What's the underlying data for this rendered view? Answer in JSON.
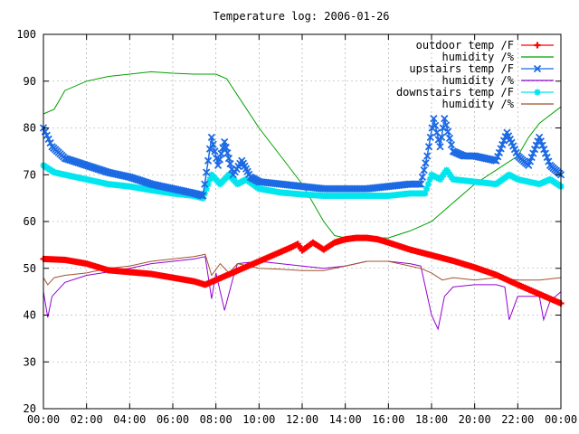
{
  "chart_data": {
    "type": "line",
    "title": "Temperature log: 2006-01-26",
    "xlabel": "",
    "ylabel": "",
    "x_ticks": [
      "00:00",
      "02:00",
      "04:00",
      "06:00",
      "08:00",
      "10:00",
      "12:00",
      "14:00",
      "16:00",
      "18:00",
      "20:00",
      "22:00",
      "00:00"
    ],
    "xlim": [
      0,
      24
    ],
    "ylim": [
      20,
      100
    ],
    "y_ticks": [
      20,
      30,
      40,
      50,
      60,
      70,
      80,
      90,
      100
    ],
    "grid": true,
    "legend_position": "top-right",
    "series": [
      {
        "name": "outdoor temp /F",
        "color": "#ff0000",
        "marker": "plus",
        "points": [
          [
            0,
            52
          ],
          [
            1,
            51.8
          ],
          [
            2,
            51
          ],
          [
            3,
            49.6
          ],
          [
            4,
            49.2
          ],
          [
            5,
            48.8
          ],
          [
            6,
            48
          ],
          [
            7,
            47.2
          ],
          [
            7.5,
            46.5
          ],
          [
            8,
            47.5
          ],
          [
            8.5,
            48.5
          ],
          [
            9,
            49.5
          ],
          [
            10,
            51.5
          ],
          [
            11,
            53.5
          ],
          [
            11.5,
            54.5
          ],
          [
            11.8,
            55.2
          ],
          [
            12,
            53.8
          ],
          [
            12.5,
            55.5
          ],
          [
            13,
            54
          ],
          [
            13.5,
            55.5
          ],
          [
            14,
            56.2
          ],
          [
            14.5,
            56.5
          ],
          [
            15,
            56.5
          ],
          [
            15.5,
            56.2
          ],
          [
            16,
            55.5
          ],
          [
            17,
            54
          ],
          [
            18,
            52.8
          ],
          [
            19,
            51.6
          ],
          [
            20,
            50.2
          ],
          [
            21,
            48.6
          ],
          [
            22,
            46.5
          ],
          [
            23,
            44.5
          ],
          [
            24,
            42.5
          ]
        ]
      },
      {
        "name": "humidity /%",
        "color": "#00a000",
        "marker": "line",
        "points": [
          [
            0,
            83
          ],
          [
            0.5,
            84
          ],
          [
            1,
            88
          ],
          [
            2,
            90
          ],
          [
            3,
            91
          ],
          [
            4,
            91.5
          ],
          [
            5,
            92
          ],
          [
            6,
            91.7
          ],
          [
            7,
            91.5
          ],
          [
            8,
            91.5
          ],
          [
            8.5,
            90.5
          ],
          [
            9,
            87
          ],
          [
            10,
            80
          ],
          [
            11,
            74
          ],
          [
            12,
            68
          ],
          [
            13,
            60
          ],
          [
            13.5,
            57
          ],
          [
            14,
            56.5
          ],
          [
            15,
            57
          ],
          [
            15.5,
            56.5
          ],
          [
            16,
            56.5
          ],
          [
            17,
            58
          ],
          [
            18,
            60
          ],
          [
            18.5,
            62
          ],
          [
            19,
            64
          ],
          [
            20,
            68
          ],
          [
            21,
            71
          ],
          [
            22,
            74
          ],
          [
            22.5,
            78
          ],
          [
            23,
            81
          ],
          [
            24,
            84.5
          ]
        ]
      },
      {
        "name": "upstairs temp /F",
        "color": "#1c6ae4",
        "marker": "x",
        "points": [
          [
            0,
            80
          ],
          [
            0.4,
            76
          ],
          [
            1,
            73.5
          ],
          [
            2,
            72
          ],
          [
            3,
            70.5
          ],
          [
            4,
            69.5
          ],
          [
            5,
            68
          ],
          [
            6,
            67
          ],
          [
            7,
            66
          ],
          [
            7.4,
            65.5
          ],
          [
            7.8,
            78
          ],
          [
            8.1,
            72
          ],
          [
            8.4,
            77
          ],
          [
            8.8,
            70
          ],
          [
            9.2,
            73
          ],
          [
            9.6,
            69.5
          ],
          [
            10,
            68.5
          ],
          [
            11,
            68
          ],
          [
            12,
            67.5
          ],
          [
            13,
            67
          ],
          [
            14,
            67
          ],
          [
            15,
            67
          ],
          [
            16,
            67.5
          ],
          [
            17,
            68
          ],
          [
            17.5,
            68
          ],
          [
            17.8,
            74
          ],
          [
            18.1,
            82
          ],
          [
            18.4,
            76
          ],
          [
            18.6,
            82
          ],
          [
            19,
            75
          ],
          [
            19.5,
            74
          ],
          [
            20,
            74
          ],
          [
            21,
            73
          ],
          [
            21.5,
            79
          ],
          [
            22,
            74
          ],
          [
            22.5,
            72
          ],
          [
            23,
            78
          ],
          [
            23.5,
            72
          ],
          [
            24,
            70
          ]
        ]
      },
      {
        "name": "humidity /%",
        "color": "#9400d3",
        "marker": "line",
        "points": [
          [
            0,
            45
          ],
          [
            0.2,
            39.5
          ],
          [
            0.4,
            44
          ],
          [
            1,
            47
          ],
          [
            2,
            48.5
          ],
          [
            3,
            49.2
          ],
          [
            4,
            50
          ],
          [
            5,
            51
          ],
          [
            6,
            51.5
          ],
          [
            7,
            52
          ],
          [
            7.5,
            52.5
          ],
          [
            7.8,
            43.5
          ],
          [
            8,
            49
          ],
          [
            8.4,
            41
          ],
          [
            8.8,
            48
          ],
          [
            9,
            51
          ],
          [
            10,
            51.5
          ],
          [
            11,
            51
          ],
          [
            12,
            50.5
          ],
          [
            13,
            50
          ],
          [
            14,
            50.5
          ],
          [
            15,
            51.5
          ],
          [
            16,
            51.5
          ],
          [
            17,
            51
          ],
          [
            17.5,
            50.5
          ],
          [
            18,
            40
          ],
          [
            18.3,
            37
          ],
          [
            18.6,
            44
          ],
          [
            19,
            46
          ],
          [
            20,
            46.5
          ],
          [
            21,
            46.5
          ],
          [
            21.4,
            46
          ],
          [
            21.6,
            39
          ],
          [
            22,
            44
          ],
          [
            23,
            44
          ],
          [
            23.2,
            39
          ],
          [
            23.5,
            43
          ],
          [
            24,
            45
          ]
        ]
      },
      {
        "name": "downstairs temp /F",
        "color": "#00e5ee",
        "marker": "star",
        "points": [
          [
            0,
            72
          ],
          [
            0.5,
            70.5
          ],
          [
            1,
            70
          ],
          [
            2,
            69
          ],
          [
            3,
            68
          ],
          [
            4,
            67.5
          ],
          [
            5,
            66.7
          ],
          [
            6,
            66
          ],
          [
            7,
            65.5
          ],
          [
            7.4,
            65
          ],
          [
            7.8,
            70
          ],
          [
            8.2,
            68
          ],
          [
            8.6,
            70
          ],
          [
            9,
            68
          ],
          [
            9.4,
            69
          ],
          [
            10,
            67
          ],
          [
            11,
            66.2
          ],
          [
            12,
            65.8
          ],
          [
            13,
            65.5
          ],
          [
            14,
            65.5
          ],
          [
            15,
            65.5
          ],
          [
            16,
            65.5
          ],
          [
            17,
            66
          ],
          [
            17.7,
            66
          ],
          [
            18,
            70
          ],
          [
            18.4,
            69
          ],
          [
            18.7,
            71
          ],
          [
            19,
            69
          ],
          [
            20,
            68.5
          ],
          [
            21,
            68
          ],
          [
            21.6,
            70
          ],
          [
            22,
            69
          ],
          [
            23,
            68
          ],
          [
            23.5,
            69
          ],
          [
            24,
            67.5
          ]
        ]
      },
      {
        "name": "humidity /%",
        "color": "#a0522d",
        "marker": "line",
        "points": [
          [
            0,
            48
          ],
          [
            0.2,
            46.5
          ],
          [
            0.5,
            48
          ],
          [
            1,
            48.5
          ],
          [
            2,
            49
          ],
          [
            3,
            50
          ],
          [
            4,
            50.5
          ],
          [
            5,
            51.5
          ],
          [
            6,
            52
          ],
          [
            7,
            52.5
          ],
          [
            7.5,
            53
          ],
          [
            7.8,
            48.5
          ],
          [
            8.2,
            51
          ],
          [
            8.6,
            49
          ],
          [
            9,
            51
          ],
          [
            10,
            50
          ],
          [
            11,
            49.8
          ],
          [
            12,
            49.5
          ],
          [
            13,
            49.5
          ],
          [
            14,
            50.5
          ],
          [
            15,
            51.5
          ],
          [
            16,
            51.5
          ],
          [
            17,
            50.5
          ],
          [
            17.5,
            50
          ],
          [
            18,
            49
          ],
          [
            18.5,
            47.5
          ],
          [
            19,
            48
          ],
          [
            20,
            47.5
          ],
          [
            21,
            48
          ],
          [
            22,
            47.5
          ],
          [
            23,
            47.5
          ],
          [
            24,
            48
          ]
        ]
      }
    ]
  }
}
